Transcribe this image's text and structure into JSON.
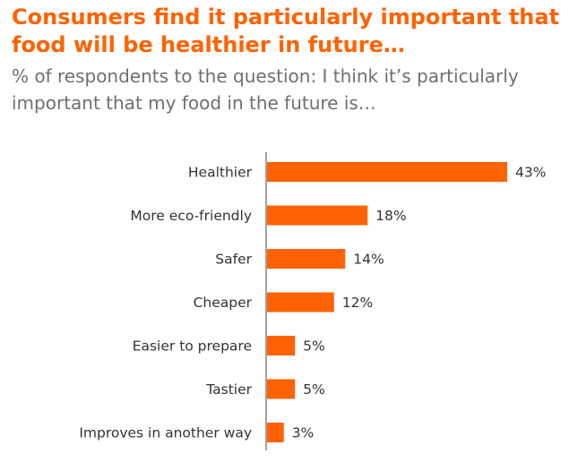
{
  "chart_data": {
    "type": "bar",
    "orientation": "horizontal",
    "title": "Consumers find it particularly important that food will be healthier in future…",
    "subtitle": "% of respondents to the question: I think it’s particularly important that my food in the future is…",
    "categories": [
      "Healthier",
      "More eco-friendly",
      "Safer",
      "Cheaper",
      "Easier to prepare",
      "Tastier",
      "Improves in another way"
    ],
    "values": [
      43,
      18,
      14,
      12,
      5,
      5,
      3
    ],
    "value_labels": [
      "43%",
      "18%",
      "14%",
      "12%",
      "5%",
      "5%",
      "3%"
    ],
    "unit": "%",
    "xlim": [
      0,
      43
    ],
    "bar_color": "#FF6200",
    "axis_color": "#666666",
    "grid": false,
    "legend": "none"
  }
}
